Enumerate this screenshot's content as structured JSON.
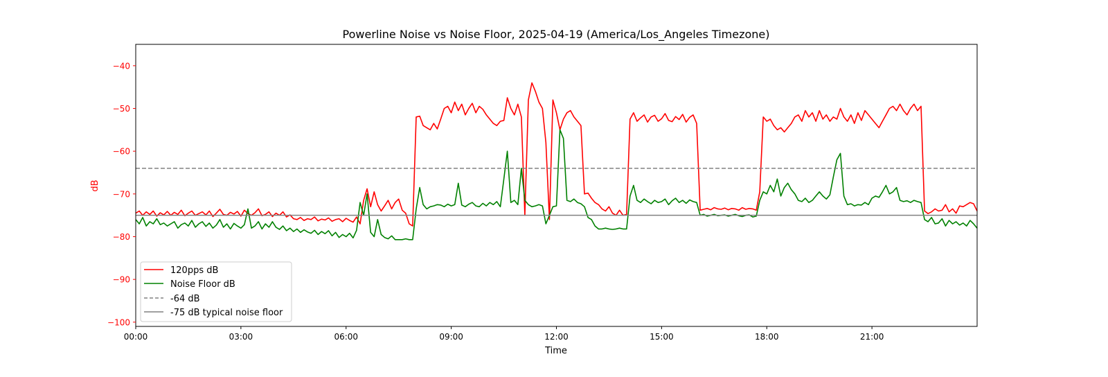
{
  "chart_data": {
    "type": "line",
    "title": "Powerline Noise vs Noise Floor, 2025-04-19 (America/Los_Angeles Timezone)",
    "xlabel": "Time",
    "ylabel": "dB",
    "xlim_hours": [
      0,
      24
    ],
    "ylim": [
      -101,
      -35
    ],
    "x_start_hours": 0,
    "x_step_hours": 0.1,
    "xticks": [
      {
        "hour": 0,
        "label": "00:00"
      },
      {
        "hour": 3,
        "label": "03:00"
      },
      {
        "hour": 6,
        "label": "06:00"
      },
      {
        "hour": 9,
        "label": "09:00"
      },
      {
        "hour": 12,
        "label": "12:00"
      },
      {
        "hour": 15,
        "label": "15:00"
      },
      {
        "hour": 18,
        "label": "18:00"
      },
      {
        "hour": 21,
        "label": "21:00"
      }
    ],
    "yticks": [
      {
        "value": -40,
        "label": "−40"
      },
      {
        "value": -50,
        "label": "−50"
      },
      {
        "value": -60,
        "label": "−60"
      },
      {
        "value": -70,
        "label": "−70"
      },
      {
        "value": -80,
        "label": "−80"
      },
      {
        "value": -90,
        "label": "−90"
      },
      {
        "value": -100,
        "label": "−100"
      }
    ],
    "grid": false,
    "legend_position": "lower-left",
    "series": [
      {
        "name": "120pps dB",
        "color": "#ff0000",
        "style": "solid",
        "values": [
          -74.5,
          -74,
          -75,
          -74.2,
          -74.8,
          -74,
          -75.2,
          -74.4,
          -74.9,
          -74.1,
          -75,
          -74.3,
          -74.8,
          -73.8,
          -75.1,
          -74.5,
          -74,
          -75,
          -74.6,
          -74.2,
          -74.9,
          -74,
          -75.3,
          -74.5,
          -73.6,
          -74.8,
          -75,
          -74.3,
          -74.7,
          -74.1,
          -75.2,
          -73.8,
          -74.6,
          -75,
          -74.4,
          -73.5,
          -75.1,
          -74.8,
          -74.2,
          -75.3,
          -74.5,
          -75,
          -74.2,
          -75.4,
          -74.9,
          -75.8,
          -76,
          -75.5,
          -76.2,
          -75.8,
          -76,
          -75.4,
          -76.3,
          -75.9,
          -76.1,
          -75.6,
          -76.4,
          -76,
          -75.8,
          -76.5,
          -75.7,
          -76.2,
          -76.6,
          -75.4,
          -77,
          -71.5,
          -68.8,
          -73,
          -69.5,
          -72.5,
          -74,
          -72.8,
          -71.5,
          -73.5,
          -72,
          -71.2,
          -73.8,
          -74.5,
          -77,
          -77.5,
          -52,
          -51.8,
          -54,
          -54.5,
          -55,
          -53.5,
          -54.8,
          -52.5,
          -50,
          -49.5,
          -51,
          -48.5,
          -50.5,
          -49,
          -51.5,
          -50,
          -48.8,
          -51,
          -49.5,
          -50.2,
          -51.5,
          -52.5,
          -53.5,
          -54,
          -53,
          -52.8,
          -47.5,
          -50,
          -51.5,
          -49,
          -52,
          -75,
          -48,
          -44,
          -46,
          -48.5,
          -50,
          -58,
          -76,
          -48,
          -51,
          -55,
          -52.5,
          -51,
          -50.5,
          -52,
          -53,
          -54,
          -70,
          -69.8,
          -71,
          -72,
          -72.5,
          -73.5,
          -74,
          -73,
          -74.5,
          -75,
          -73.8,
          -75,
          -74.8,
          -52.5,
          -51,
          -53,
          -52.2,
          -51.5,
          -53.2,
          -52,
          -51.6,
          -53,
          -52.4,
          -51.2,
          -52.8,
          -53.1,
          -51.9,
          -52.6,
          -51.4,
          -53.2,
          -52.1,
          -51.5,
          -53.5,
          -73.8,
          -73.6,
          -73.4,
          -73.7,
          -73.2,
          -73.5,
          -73.6,
          -73.3,
          -73.7,
          -73.4,
          -73.5,
          -73.8,
          -73.2,
          -73.6,
          -73.4,
          -73.5,
          -73.8,
          -69.5,
          -52,
          -53,
          -52.5,
          -54,
          -55,
          -54.5,
          -55.5,
          -54.5,
          -53.5,
          -52,
          -51.5,
          -53,
          -50.5,
          -52,
          -51,
          -53,
          -50.5,
          -52.5,
          -51.5,
          -53,
          -52,
          -52.5,
          -50,
          -52,
          -53,
          -51.5,
          -53.5,
          -51,
          -52.8,
          -50.5,
          -51.5,
          -52.5,
          -53.5,
          -54.5,
          -53,
          -51.5,
          -50,
          -49.5,
          -50.5,
          -49,
          -50.5,
          -51.5,
          -50,
          -49,
          -50.5,
          -49.5,
          -74,
          -74.6,
          -74.2,
          -73.5,
          -74,
          -73.8,
          -72.5,
          -74.2,
          -73.5,
          -74.5,
          -72.8,
          -73,
          -72.5,
          -72,
          -72.3,
          -74
        ]
      },
      {
        "name": "Noise Floor dB",
        "color": "#008000",
        "style": "solid",
        "values": [
          -76,
          -77,
          -75.5,
          -77.5,
          -76.5,
          -77,
          -75.8,
          -77.2,
          -76.8,
          -77.5,
          -77,
          -76.5,
          -78,
          -77.2,
          -76.8,
          -77.5,
          -76.2,
          -77.8,
          -77,
          -76.5,
          -77.6,
          -76.8,
          -78,
          -77.3,
          -76,
          -77.8,
          -77,
          -78.2,
          -76.9,
          -77.5,
          -78,
          -77.2,
          -73.5,
          -78,
          -77.5,
          -76.5,
          -78.2,
          -77,
          -77.8,
          -76.5,
          -77.8,
          -78.3,
          -77.5,
          -78.6,
          -78,
          -78.8,
          -78.2,
          -79,
          -78.4,
          -78.9,
          -79.2,
          -78.5,
          -79.5,
          -78.8,
          -79.3,
          -78.6,
          -79.8,
          -79,
          -80.2,
          -79.5,
          -80,
          -79.2,
          -80.3,
          -78.5,
          -72,
          -75,
          -70,
          -79,
          -80,
          -76,
          -79.5,
          -80.2,
          -80.5,
          -79.8,
          -80.7,
          -80.7,
          -80.7,
          -80.5,
          -80.7,
          -80.7,
          -73.5,
          -68.5,
          -72.5,
          -73.5,
          -73,
          -72.8,
          -72.5,
          -72.6,
          -73,
          -72.4,
          -72.8,
          -72.5,
          -67.5,
          -72.6,
          -73,
          -72.4,
          -72,
          -72.8,
          -73,
          -72.2,
          -72.8,
          -72,
          -72.5,
          -71.8,
          -73,
          -66.5,
          -60,
          -72,
          -71.5,
          -72.5,
          -64,
          -71.5,
          -72.5,
          -73,
          -72.8,
          -72.5,
          -72.8,
          -77,
          -75,
          -73,
          -72.8,
          -55,
          -57,
          -71.5,
          -71.8,
          -71.2,
          -72,
          -72.3,
          -73,
          -75.5,
          -76,
          -77.5,
          -78.2,
          -78.2,
          -78,
          -78.2,
          -78.3,
          -78.2,
          -78,
          -78.2,
          -78.2,
          -70.5,
          -68,
          -71.5,
          -72,
          -71.2,
          -71.8,
          -72.3,
          -71.5,
          -72,
          -71.8,
          -71.2,
          -72.5,
          -71.6,
          -71,
          -72,
          -71.5,
          -72.2,
          -71.4,
          -71.8,
          -72,
          -75,
          -74.8,
          -75.2,
          -75,
          -74.8,
          -75.1,
          -75,
          -74.9,
          -75.2,
          -75,
          -74.8,
          -75.1,
          -75.3,
          -75,
          -74.9,
          -75.4,
          -75.2,
          -71.5,
          -69.5,
          -70,
          -68,
          -69.5,
          -66.5,
          -70.5,
          -68.5,
          -67.5,
          -69,
          -70,
          -71.5,
          -71.8,
          -71,
          -72,
          -71.5,
          -70.5,
          -69.5,
          -70.5,
          -71.2,
          -70.2,
          -66,
          -62,
          -60.5,
          -70.5,
          -72.5,
          -72.3,
          -72.8,
          -72.5,
          -72.6,
          -72,
          -72.5,
          -71,
          -70.5,
          -70.8,
          -69.5,
          -68,
          -70,
          -69.5,
          -68.5,
          -71.5,
          -71.8,
          -71.6,
          -72,
          -71.5,
          -71.8,
          -72,
          -76,
          -76.5,
          -75.5,
          -77,
          -76.8,
          -75.8,
          -77.5,
          -76.2,
          -77,
          -76.5,
          -77.3,
          -76.8,
          -77.5,
          -76.2,
          -77,
          -78
        ]
      }
    ],
    "reference_lines": [
      {
        "name": "-64 dB",
        "value": -64,
        "color": "#808080",
        "style": "dashed"
      },
      {
        "name": "-75 dB typical noise floor",
        "value": -75,
        "color": "#808080",
        "style": "solid"
      }
    ],
    "axis_label_color": "#ff0000"
  }
}
